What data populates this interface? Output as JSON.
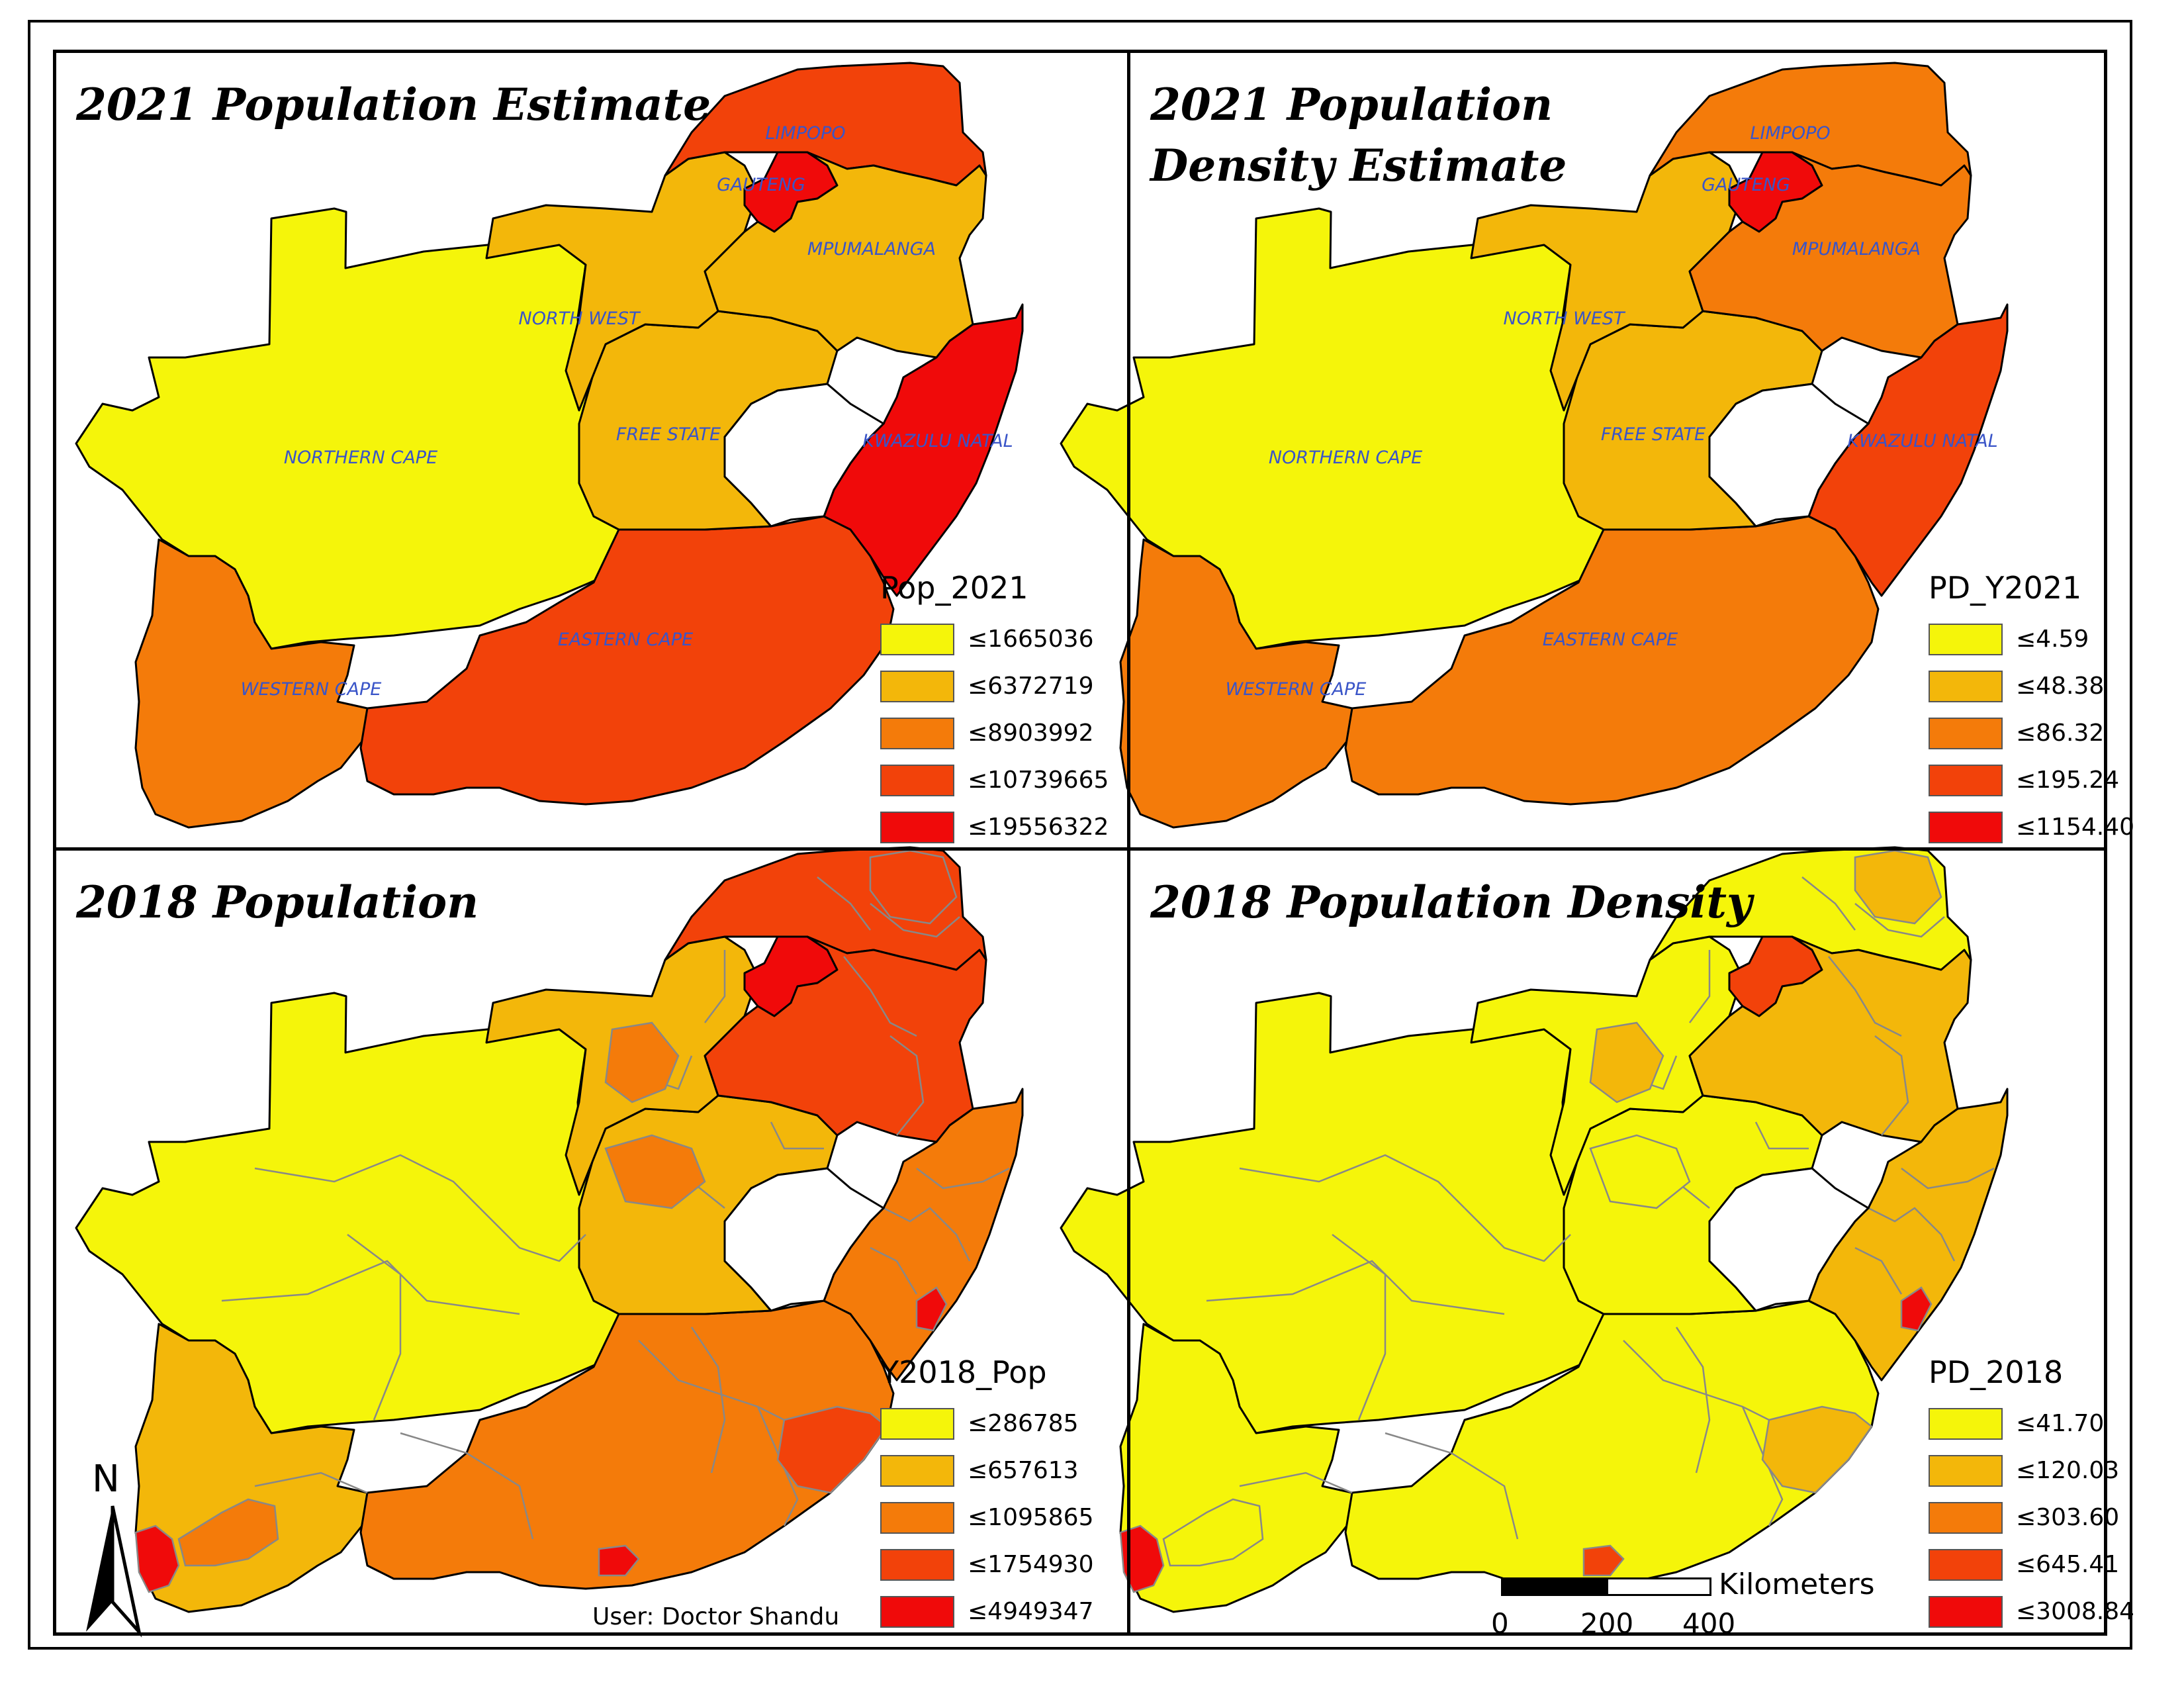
{
  "colors": {
    "class1": "#f5f50a",
    "class2": "#f3b70a",
    "class3": "#f47b0a",
    "class4": "#f2420a",
    "class5": "#f00a0a",
    "boundary": "#000000",
    "district_line": "#888888",
    "label": "#3a55c8"
  },
  "provinces": {
    "northern_cape": "NORTHERN CAPE",
    "western_cape": "WESTERN CAPE",
    "eastern_cape": "EASTERN CAPE",
    "free_state": "FREE STATE",
    "north_west": "NORTH WEST",
    "gauteng": "GAUTENG",
    "limpopo": "LIMPOPO",
    "mpumalanga": "MPUMALANGA",
    "kwazulu_natal": "KWAZULU NATAL"
  },
  "panels": [
    {
      "title": "2021 Population Estimate",
      "show_labels": true,
      "districts": false,
      "legend": {
        "title": "Pop_2021",
        "items": [
          "≤1665036",
          "≤6372719",
          "≤8903992",
          "≤10739665",
          "≤19556322"
        ]
      },
      "province_class": {
        "northern_cape": 1,
        "western_cape": 3,
        "eastern_cape": 4,
        "free_state": 2,
        "north_west": 2,
        "gauteng": 5,
        "limpopo": 4,
        "mpumalanga": 2,
        "kwazulu_natal": 5
      }
    },
    {
      "title": "2021 Population Density Estimate",
      "show_labels": true,
      "districts": false,
      "legend": {
        "title": "PD_Y2021",
        "items": [
          "≤4.59",
          "≤48.38",
          "≤86.32",
          "≤195.24",
          "≤1154.40"
        ]
      },
      "province_class": {
        "northern_cape": 1,
        "western_cape": 3,
        "eastern_cape": 3,
        "free_state": 2,
        "north_west": 2,
        "gauteng": 5,
        "limpopo": 3,
        "mpumalanga": 3,
        "kwazulu_natal": 4
      }
    },
    {
      "title": "2018 Population",
      "show_labels": false,
      "districts": true,
      "legend": {
        "title": "Y2018_Pop",
        "items": [
          "≤286785",
          "≤657613",
          "≤1095865",
          "≤1754930",
          "≤4949347"
        ]
      },
      "province_class": {
        "northern_cape": 1,
        "western_cape": 2,
        "eastern_cape": 3,
        "free_state": 2,
        "north_west": 2,
        "gauteng": 5,
        "limpopo": 4,
        "mpumalanga": 4,
        "kwazulu_natal": 3
      },
      "district_class": {
        "cape_town": 5,
        "nw_ne": 3,
        "ec_coast": 4,
        "ec_nmb": 5,
        "kzn_durban": 5,
        "fs_north": 3,
        "lim_east": 4,
        "wc_cape": 3
      }
    },
    {
      "title": "2018 Population Density",
      "show_labels": false,
      "districts": true,
      "legend": {
        "title": "PD_2018",
        "items": [
          "≤41.70",
          "≤120.03",
          "≤303.60",
          "≤645.41",
          "≤3008.84"
        ]
      },
      "province_class": {
        "northern_cape": 1,
        "western_cape": 1,
        "eastern_cape": 1,
        "free_state": 1,
        "north_west": 1,
        "gauteng": 4,
        "limpopo": 1,
        "mpumalanga": 2,
        "kwazulu_natal": 2
      },
      "district_class": {
        "cape_town": 5,
        "nw_ne": 2,
        "ec_coast": 2,
        "ec_nmb": 4,
        "kzn_durban": 5,
        "fs_north": 1,
        "lim_east": 2,
        "wc_cape": 1
      }
    }
  ],
  "north_arrow": {
    "letter": "N"
  },
  "credit": "User: Doctor Shandu",
  "scale": {
    "unit": "Kilometers",
    "ticks": [
      "0",
      "200",
      "400"
    ]
  }
}
